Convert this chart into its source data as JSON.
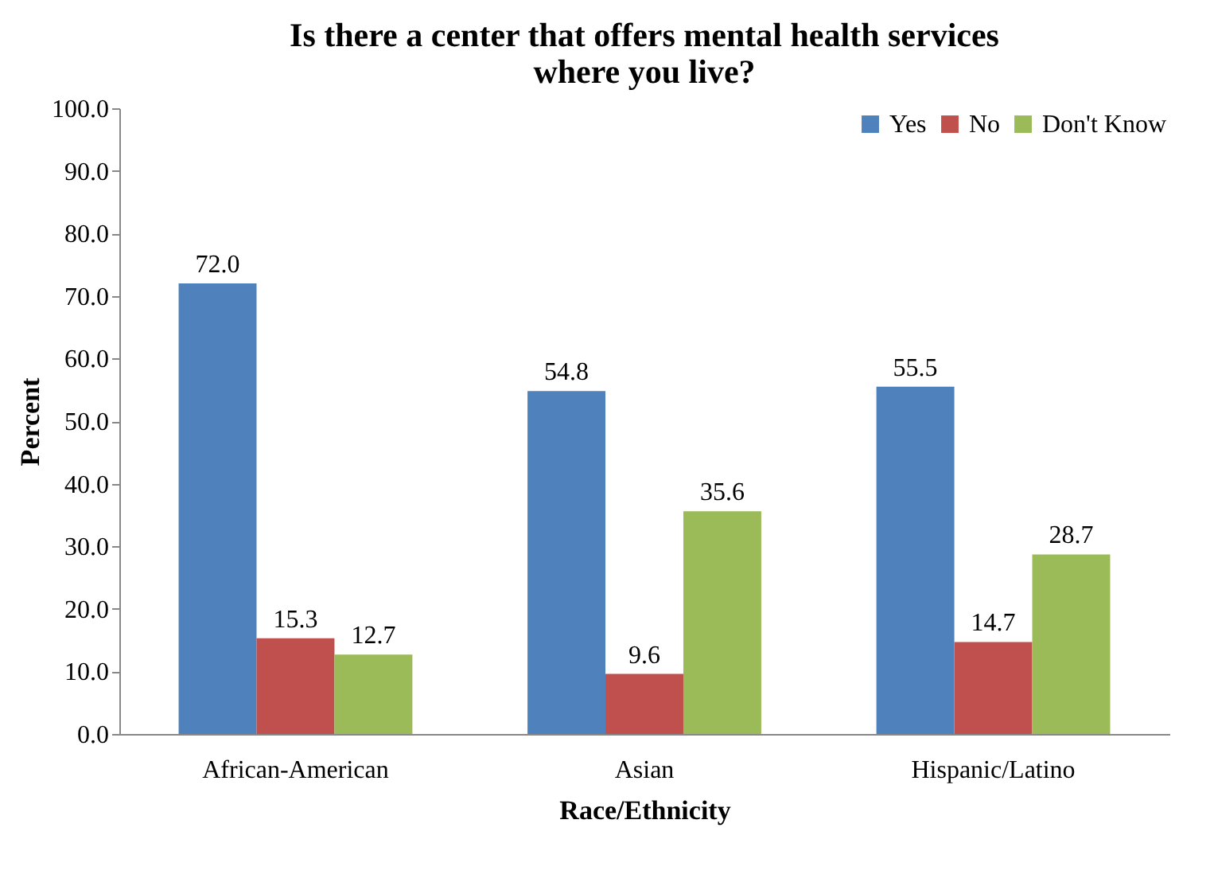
{
  "chart_data": {
    "type": "bar",
    "title": "Is there a center that offers mental health services\nwhere you live?",
    "xlabel": "Race/Ethnicity",
    "ylabel": "Percent",
    "categories": [
      "African-American",
      "Asian",
      "Hispanic/Latino"
    ],
    "series": [
      {
        "name": "Yes",
        "color": "#4f81bd",
        "values": [
          72.0,
          54.8,
          55.5
        ],
        "value_labels": [
          "72.0",
          "54.8",
          "55.5"
        ]
      },
      {
        "name": "No",
        "color": "#c0504d",
        "values": [
          15.3,
          9.6,
          14.7
        ],
        "value_labels": [
          "15.3",
          "9.6",
          "14.7"
        ]
      },
      {
        "name": "Don't Know",
        "color": "#9bbb59",
        "values": [
          12.7,
          35.6,
          28.7
        ],
        "value_labels": [
          "12.7",
          "35.6",
          "28.7"
        ]
      }
    ],
    "ylim": [
      0,
      100
    ],
    "yticks": [
      {
        "value": 0,
        "label": "0.0"
      },
      {
        "value": 10,
        "label": "10.0"
      },
      {
        "value": 20,
        "label": "20.0"
      },
      {
        "value": 30,
        "label": "30.0"
      },
      {
        "value": 40,
        "label": "40.0"
      },
      {
        "value": 50,
        "label": "50.0"
      },
      {
        "value": 60,
        "label": "60.0"
      },
      {
        "value": 70,
        "label": "70.0"
      },
      {
        "value": 80,
        "label": "80.0"
      },
      {
        "value": 90,
        "label": "90.0"
      },
      {
        "value": 100,
        "label": "100.0"
      }
    ],
    "grid": false,
    "legend": "top right"
  }
}
